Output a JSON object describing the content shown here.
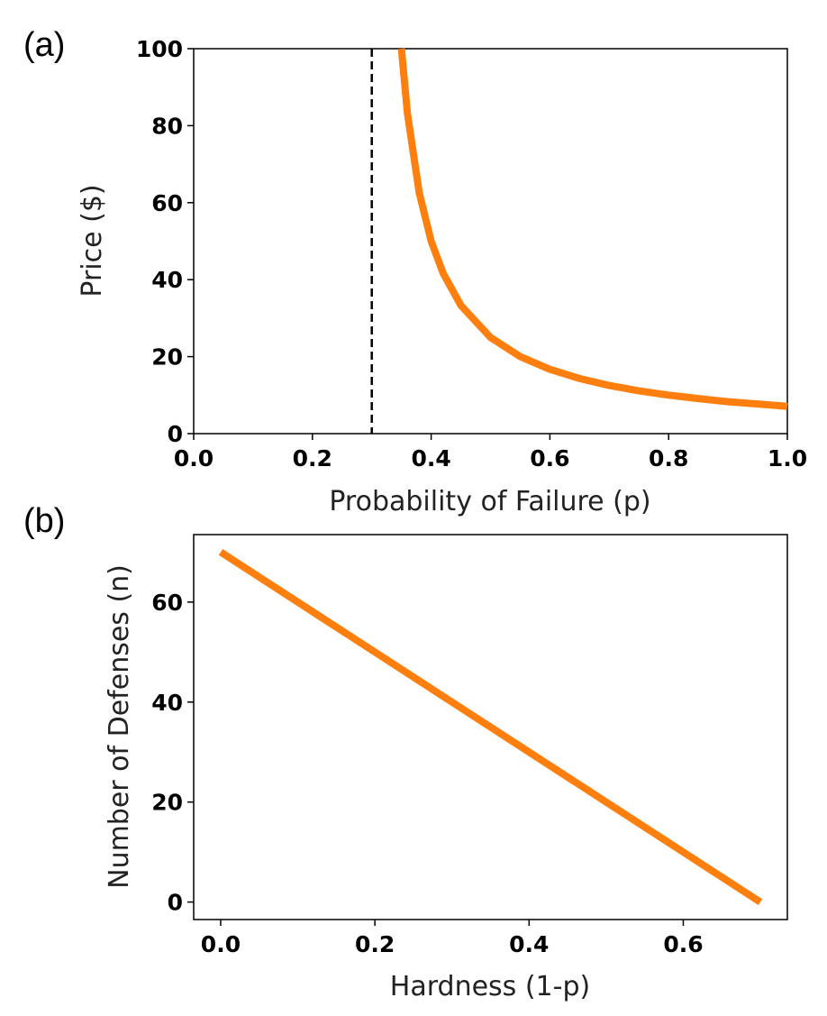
{
  "chart_data": [
    {
      "panel": "(a)",
      "type": "line",
      "title": "",
      "xlabel": "Probability of Failure (p)",
      "ylabel": "Price ($)",
      "xlim": [
        0.0,
        1.0
      ],
      "ylim": [
        0,
        100
      ],
      "xticks": [
        "0.0",
        "0.2",
        "0.4",
        "0.6",
        "0.8",
        "1.0"
      ],
      "yticks": [
        "0",
        "20",
        "40",
        "60",
        "80",
        "100"
      ],
      "grid": false,
      "series": [
        {
          "color": "#ff7f0e",
          "x": [
            0.35,
            0.36,
            0.38,
            0.4,
            0.42,
            0.45,
            0.5,
            0.55,
            0.6,
            0.65,
            0.7,
            0.75,
            0.8,
            0.85,
            0.9,
            0.95,
            1.0
          ],
          "y": [
            100,
            83.3,
            62.5,
            50.0,
            41.7,
            33.3,
            25.0,
            20.0,
            16.7,
            14.3,
            12.5,
            11.1,
            10.0,
            9.1,
            8.3,
            7.7,
            7.1
          ]
        }
      ],
      "reference_lines": [
        {
          "orientation": "vertical",
          "x": 0.3,
          "style": "dashed",
          "color": "#000000"
        }
      ]
    },
    {
      "panel": "(b)",
      "type": "line",
      "title": "",
      "xlabel": "Hardness (1-p)",
      "ylabel": "Number of Defenses (n)",
      "xlim": [
        -0.035,
        0.735
      ],
      "ylim": [
        -3.5,
        73.5
      ],
      "xticks": [
        "0.0",
        "0.2",
        "0.4",
        "0.6"
      ],
      "yticks": [
        "0",
        "20",
        "40",
        "60"
      ],
      "grid": false,
      "series": [
        {
          "color": "#ff7f0e",
          "x": [
            0.0,
            0.7
          ],
          "y": [
            70,
            0
          ]
        }
      ]
    }
  ]
}
